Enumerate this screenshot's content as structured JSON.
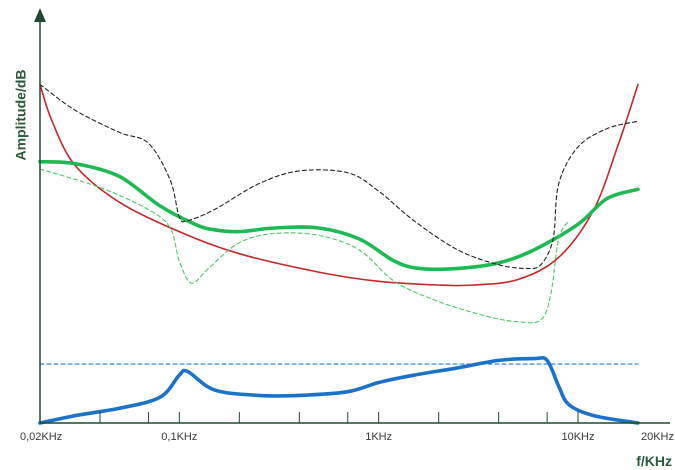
{
  "chart_data": {
    "type": "line",
    "title": "",
    "xlabel": "f/KHz",
    "ylabel": "Amplitude/dB",
    "x_scale": "log",
    "xlim": [
      0.02,
      20
    ],
    "x_ticks": [
      {
        "value": 0.02,
        "label": "0,02KHz"
      },
      {
        "value": 0.1,
        "label": "0,1KHz"
      },
      {
        "value": 1,
        "label": "1KHz"
      },
      {
        "value": 10,
        "label": "10KHz"
      },
      {
        "value": 20,
        "label": "20KHz"
      }
    ],
    "y_range": [
      0,
      100
    ],
    "y_unit_note": "relative amplitude, no numeric scale shown",
    "grid": false,
    "legend": "none",
    "colors": {
      "axis": "#1f4a2e",
      "red": "#c62828",
      "green": "#1db954",
      "green_dashed": "#4cc46a",
      "black_dashed": "#222222",
      "blue": "#1a73c9",
      "blue_dashed": "#2b7bd6"
    },
    "series": [
      {
        "style": "solid-thin",
        "color": "red",
        "points": [
          [
            0.02,
            92
          ],
          [
            0.023,
            82
          ],
          [
            0.03,
            70
          ],
          [
            0.05,
            60
          ],
          [
            0.1,
            52
          ],
          [
            0.2,
            46
          ],
          [
            0.5,
            41
          ],
          [
            1,
            38.5
          ],
          [
            2,
            37.5
          ],
          [
            3,
            37.5
          ],
          [
            5,
            39
          ],
          [
            8,
            45
          ],
          [
            12,
            58
          ],
          [
            16,
            76
          ],
          [
            20,
            92
          ]
        ]
      },
      {
        "style": "solid-thick",
        "color": "green",
        "points": [
          [
            0.02,
            71
          ],
          [
            0.03,
            70.5
          ],
          [
            0.05,
            67
          ],
          [
            0.08,
            59
          ],
          [
            0.12,
            54
          ],
          [
            0.15,
            52.5
          ],
          [
            0.2,
            52
          ],
          [
            0.3,
            53
          ],
          [
            0.5,
            53
          ],
          [
            0.8,
            50
          ],
          [
            1.2,
            44
          ],
          [
            1.6,
            42
          ],
          [
            2.5,
            42
          ],
          [
            4,
            43.5
          ],
          [
            6,
            47
          ],
          [
            10,
            54
          ],
          [
            14,
            61
          ],
          [
            20,
            63.5
          ]
        ]
      },
      {
        "style": "dashed",
        "color": "green_dashed",
        "points": [
          [
            0.02,
            69
          ],
          [
            0.04,
            64
          ],
          [
            0.07,
            58
          ],
          [
            0.09,
            53
          ],
          [
            0.1,
            44
          ],
          [
            0.115,
            38
          ],
          [
            0.14,
            42
          ],
          [
            0.2,
            49
          ],
          [
            0.3,
            51.5
          ],
          [
            0.5,
            51
          ],
          [
            0.8,
            47
          ],
          [
            1.2,
            38.5
          ],
          [
            2,
            33
          ],
          [
            3.5,
            29
          ],
          [
            5,
            27.5
          ],
          [
            6.5,
            28
          ],
          [
            7.3,
            35
          ],
          [
            8,
            50
          ],
          [
            9,
            55
          ]
        ]
      },
      {
        "style": "dashed",
        "color": "black_dashed",
        "points": [
          [
            0.02,
            92
          ],
          [
            0.03,
            85
          ],
          [
            0.05,
            79
          ],
          [
            0.07,
            76
          ],
          [
            0.09,
            66
          ],
          [
            0.1,
            56
          ],
          [
            0.11,
            55
          ],
          [
            0.15,
            58
          ],
          [
            0.25,
            65
          ],
          [
            0.4,
            68.5
          ],
          [
            0.7,
            68
          ],
          [
            1,
            63
          ],
          [
            1.5,
            55
          ],
          [
            2.5,
            47
          ],
          [
            4,
            43
          ],
          [
            5.5,
            42
          ],
          [
            6.5,
            43
          ],
          [
            7.5,
            50
          ],
          [
            8,
            65
          ],
          [
            10,
            75
          ],
          [
            14,
            80
          ],
          [
            20,
            82
          ]
        ]
      },
      {
        "style": "dashed",
        "color": "blue_dashed",
        "points": [
          [
            0.02,
            16
          ],
          [
            20,
            16
          ]
        ]
      },
      {
        "style": "solid-thick",
        "color": "blue",
        "points": [
          [
            0.02,
            0
          ],
          [
            0.03,
            2
          ],
          [
            0.05,
            4
          ],
          [
            0.08,
            7
          ],
          [
            0.1,
            13
          ],
          [
            0.11,
            14
          ],
          [
            0.15,
            9
          ],
          [
            0.25,
            7.5
          ],
          [
            0.4,
            7.5
          ],
          [
            0.7,
            8.5
          ],
          [
            1,
            11
          ],
          [
            1.5,
            13
          ],
          [
            2.5,
            15
          ],
          [
            4,
            17
          ],
          [
            6,
            17.5
          ],
          [
            7,
            17
          ],
          [
            8,
            10
          ],
          [
            9,
            5
          ],
          [
            12,
            2
          ],
          [
            20,
            0
          ]
        ]
      }
    ]
  }
}
